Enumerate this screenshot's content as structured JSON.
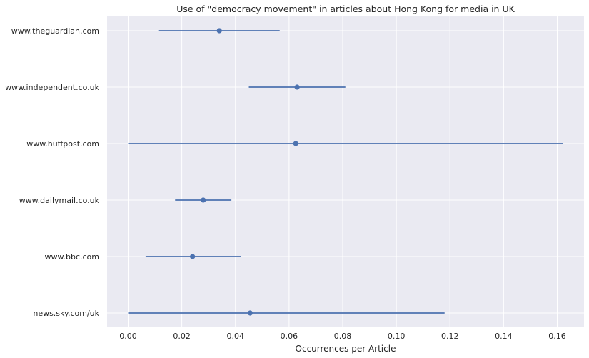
{
  "chart_data": {
    "type": "scatter",
    "title": "Use of \"democracy movement\" in articles about Hong Kong for media in UK",
    "xlabel": "Occurrences per Article",
    "ylabel": "",
    "xlim": [
      -0.008,
      0.17
    ],
    "xticks": [
      0.0,
      0.02,
      0.04,
      0.06,
      0.08,
      0.1,
      0.12,
      0.14,
      0.16
    ],
    "xtick_labels": [
      "0.00",
      "0.02",
      "0.04",
      "0.06",
      "0.08",
      "0.10",
      "0.12",
      "0.14",
      "0.16"
    ],
    "grid": true,
    "categories": [
      "www.theguardian.com",
      "www.independent.co.uk",
      "www.huffpost.com",
      "www.dailymail.co.uk",
      "www.bbc.com",
      "news.sky.com/uk"
    ],
    "values": [
      0.034,
      0.063,
      0.0625,
      0.028,
      0.024,
      0.0455
    ],
    "ci_low": [
      0.0115,
      0.045,
      0.0,
      0.0175,
      0.0065,
      0.0
    ],
    "ci_high": [
      0.0565,
      0.081,
      0.162,
      0.0385,
      0.042,
      0.118
    ],
    "colors": {
      "background": "#eaeaf2",
      "marker": "#4c72b0",
      "grid": "#ffffff"
    }
  }
}
